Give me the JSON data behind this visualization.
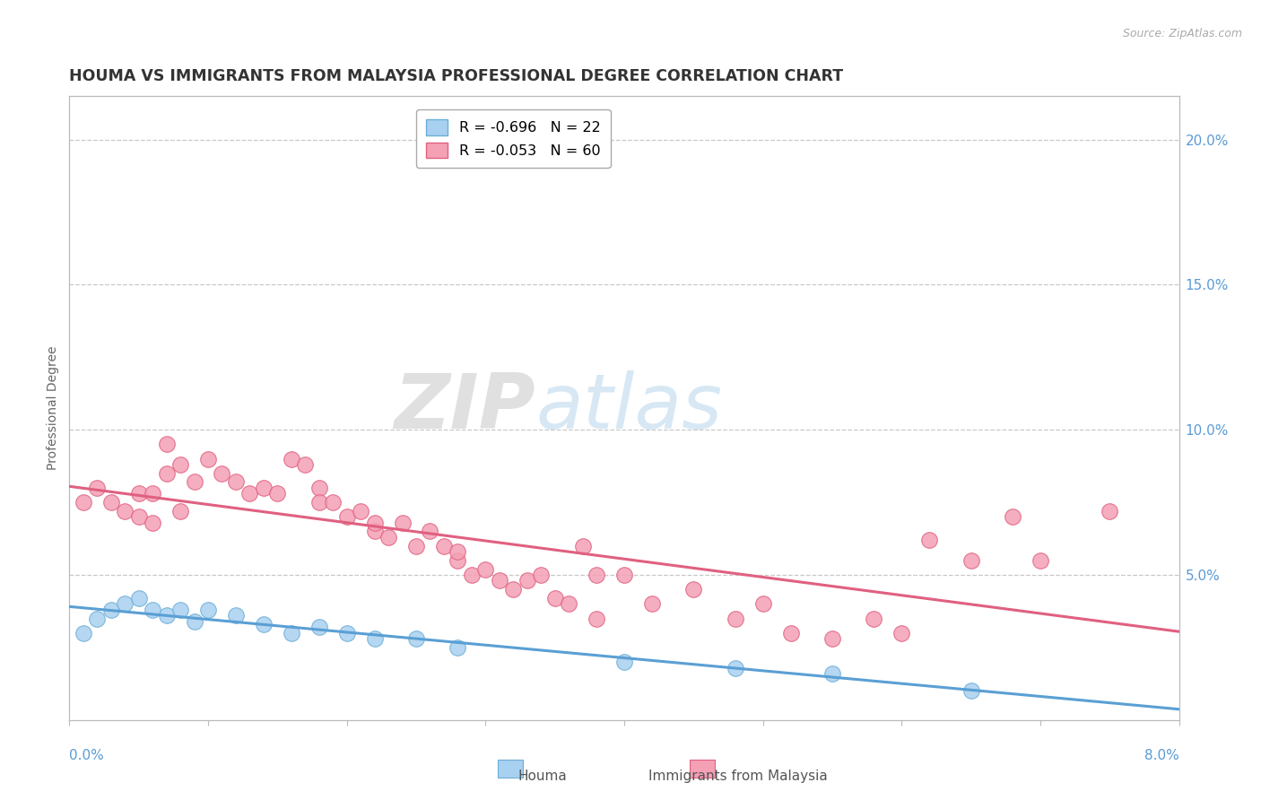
{
  "title": "HOUMA VS IMMIGRANTS FROM MALAYSIA PROFESSIONAL DEGREE CORRELATION CHART",
  "source": "Source: ZipAtlas.com",
  "ylabel": "Professional Degree",
  "ytick_labels": [
    "5.0%",
    "10.0%",
    "15.0%",
    "20.0%"
  ],
  "ytick_values": [
    0.05,
    0.1,
    0.15,
    0.2
  ],
  "xmin": 0.0,
  "xmax": 0.08,
  "ymin": 0.0,
  "ymax": 0.215,
  "legend_entries": [
    {
      "label": "R = -0.696   N = 22",
      "color": "#a8d0f0"
    },
    {
      "label": "R = -0.053   N = 60",
      "color": "#f4a0b5"
    }
  ],
  "houma_color": "#a8d0f0",
  "malaysia_color": "#f4a0b5",
  "houma_edge_color": "#6baed6",
  "malaysia_edge_color": "#e06080",
  "houma_trendline_color": "#5a9fd4",
  "malaysia_trendline_color": "#e06080",
  "watermark_zip": "ZIP",
  "watermark_atlas": "atlas",
  "background_color": "#ffffff",
  "grid_color": "#c8c8c8",
  "axis_color": "#bbbbbb",
  "title_color": "#333333",
  "tick_color": "#5b9bd5",
  "title_fontsize": 12.5,
  "axis_label_fontsize": 10,
  "tick_fontsize": 11,
  "houma_x": [
    0.001,
    0.002,
    0.003,
    0.004,
    0.005,
    0.006,
    0.007,
    0.008,
    0.009,
    0.01,
    0.012,
    0.014,
    0.016,
    0.018,
    0.02,
    0.022,
    0.025,
    0.028,
    0.04,
    0.048,
    0.055,
    0.065
  ],
  "houma_y": [
    0.03,
    0.035,
    0.038,
    0.04,
    0.042,
    0.038,
    0.036,
    0.038,
    0.034,
    0.038,
    0.036,
    0.033,
    0.03,
    0.032,
    0.03,
    0.028,
    0.028,
    0.025,
    0.02,
    0.018,
    0.016,
    0.01
  ],
  "malaysia_x": [
    0.001,
    0.002,
    0.003,
    0.004,
    0.005,
    0.005,
    0.006,
    0.006,
    0.007,
    0.007,
    0.008,
    0.008,
    0.009,
    0.01,
    0.011,
    0.012,
    0.013,
    0.014,
    0.015,
    0.016,
    0.017,
    0.018,
    0.018,
    0.019,
    0.02,
    0.021,
    0.022,
    0.022,
    0.023,
    0.024,
    0.025,
    0.026,
    0.027,
    0.028,
    0.028,
    0.029,
    0.03,
    0.031,
    0.032,
    0.033,
    0.034,
    0.035,
    0.036,
    0.037,
    0.038,
    0.038,
    0.04,
    0.042,
    0.045,
    0.048,
    0.05,
    0.052,
    0.055,
    0.058,
    0.06,
    0.062,
    0.065,
    0.068,
    0.07,
    0.075
  ],
  "malaysia_y": [
    0.075,
    0.08,
    0.075,
    0.072,
    0.078,
    0.07,
    0.068,
    0.078,
    0.085,
    0.095,
    0.072,
    0.088,
    0.082,
    0.09,
    0.085,
    0.082,
    0.078,
    0.08,
    0.078,
    0.09,
    0.088,
    0.08,
    0.075,
    0.075,
    0.07,
    0.072,
    0.065,
    0.068,
    0.063,
    0.068,
    0.06,
    0.065,
    0.06,
    0.055,
    0.058,
    0.05,
    0.052,
    0.048,
    0.045,
    0.048,
    0.05,
    0.042,
    0.04,
    0.06,
    0.05,
    0.035,
    0.05,
    0.04,
    0.045,
    0.035,
    0.04,
    0.03,
    0.028,
    0.035,
    0.03,
    0.062,
    0.055,
    0.07,
    0.055,
    0.072
  ]
}
